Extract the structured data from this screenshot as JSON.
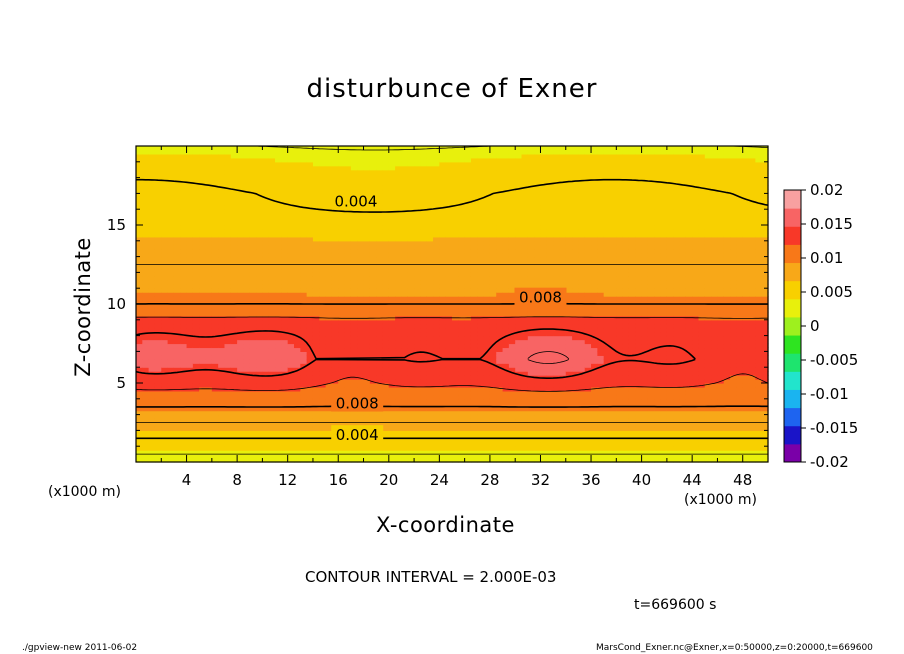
{
  "header": {
    "title": "disturbunce of Exner"
  },
  "footer": {
    "contour_interval": "CONTOUR INTERVAL = 2.000E-03",
    "time": "t=669600 s",
    "program": "./gpview-new   2011-06-02",
    "source": "MarsCond_Exner.nc@Exner,x=0:50000,z=0:20000,t=669600"
  },
  "colors": {
    "levels": [
      "#7a00a8",
      "#1a14c8",
      "#1e64f0",
      "#1ab4f0",
      "#22e4cc",
      "#1ee46e",
      "#2ee420",
      "#9ef01e",
      "#e8f00c",
      "#f8d000",
      "#f8a818",
      "#f87818",
      "#f83828",
      "#f86464",
      "#f8a0a0"
    ]
  },
  "chart_data": {
    "type": "contour",
    "title": "disturbunce of Exner",
    "xlabel": "X-coordinate",
    "ylabel": "Z-coordinate",
    "x_unit": "(x1000 m)",
    "xlim": [
      0,
      50
    ],
    "ylim": [
      0,
      20
    ],
    "x_ticks": [
      4,
      8,
      12,
      16,
      20,
      24,
      28,
      32,
      36,
      40,
      44,
      48
    ],
    "y_ticks": [
      5,
      10,
      15
    ],
    "contour_interval": 0.002,
    "colorbar": {
      "ticks": [
        "0.02",
        "0.015",
        "0.01",
        "0.005",
        "0",
        "-0.005",
        "-0.01",
        "-0.015",
        "-0.02"
      ],
      "range": [
        -0.02,
        0.02
      ],
      "step": 0.0025
    },
    "contour_labels": [
      {
        "text": "0.004",
        "x": 17.4,
        "z": 16.5
      },
      {
        "text": "0.008",
        "x": 32.0,
        "z": 10.4
      },
      {
        "text": "0.008",
        "x": 17.5,
        "z": 3.7
      },
      {
        "text": "0.004",
        "x": 17.5,
        "z": 1.7
      }
    ],
    "field_profile": [
      {
        "z": 0.0,
        "value": 0.001
      },
      {
        "z": 1.0,
        "value": 0.003
      },
      {
        "z": 2.0,
        "value": 0.005
      },
      {
        "z": 3.5,
        "value": 0.008
      },
      {
        "z": 5.0,
        "value": 0.0105
      },
      {
        "z": 6.5,
        "value": 0.0125
      },
      {
        "z": 8.5,
        "value": 0.0115
      },
      {
        "z": 10.0,
        "value": 0.008
      },
      {
        "z": 12.5,
        "value": 0.006
      },
      {
        "z": 15.0,
        "value": 0.0045
      },
      {
        "z": 17.0,
        "value": 0.004
      },
      {
        "z": 20.0,
        "value": 0.002
      }
    ]
  }
}
